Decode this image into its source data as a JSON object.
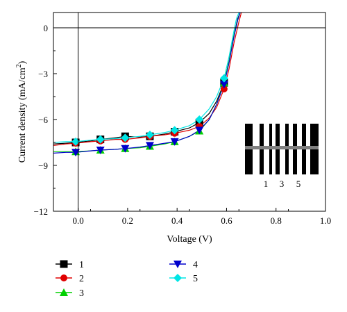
{
  "chart_data": {
    "type": "line",
    "title": "",
    "xlabel": "Voltage (V)",
    "ylabel": "Current density (mA/cm",
    "ylabel_sup": "2",
    "ylabel_close": ")",
    "xlim": [
      -0.1,
      1.0
    ],
    "ylim": [
      -12,
      1
    ],
    "xticks": [
      0.0,
      0.2,
      0.4,
      0.6,
      0.8,
      1.0
    ],
    "xtick_labels": [
      "0.0",
      "0.2",
      "0.4",
      "0.6",
      "0.8",
      "1.0"
    ],
    "yticks": [
      0,
      -3,
      -6,
      -9,
      -12
    ],
    "ytick_labels": [
      "0",
      "−3",
      "−6",
      "−9",
      "−12"
    ],
    "grid": false,
    "legend_position": "bottom",
    "marker_x": [
      -0.01,
      0.09,
      0.19,
      0.29,
      0.39,
      0.49,
      0.59
    ],
    "series": [
      {
        "name": "1",
        "color": "#000000",
        "marker": "square",
        "x": [
          -0.1,
          -0.05,
          -0.01,
          0.05,
          0.09,
          0.15,
          0.19,
          0.25,
          0.29,
          0.35,
          0.39,
          0.45,
          0.49,
          0.53,
          0.56,
          0.59,
          0.61,
          0.63,
          0.645,
          0.655
        ],
        "y": [
          -7.6,
          -7.55,
          -7.5,
          -7.4,
          -7.3,
          -7.2,
          -7.1,
          -7.15,
          -7.1,
          -6.95,
          -6.8,
          -6.55,
          -6.2,
          -5.6,
          -4.8,
          -3.6,
          -2.2,
          -0.5,
          0.6,
          1.0
        ],
        "marker_y": [
          -7.5,
          -7.3,
          -7.1,
          -7.1,
          -6.8,
          -6.2,
          -3.6
        ]
      },
      {
        "name": "2",
        "color": "#e00000",
        "marker": "circle",
        "x": [
          -0.1,
          -0.05,
          -0.01,
          0.05,
          0.09,
          0.15,
          0.19,
          0.25,
          0.29,
          0.35,
          0.39,
          0.45,
          0.49,
          0.53,
          0.56,
          0.59,
          0.61,
          0.63,
          0.65,
          0.66
        ],
        "y": [
          -7.7,
          -7.6,
          -7.55,
          -7.45,
          -7.4,
          -7.3,
          -7.3,
          -7.2,
          -7.1,
          -7.0,
          -6.9,
          -6.7,
          -6.45,
          -5.9,
          -5.2,
          -4.0,
          -2.7,
          -1.0,
          0.4,
          1.0
        ],
        "marker_y": [
          -7.55,
          -7.4,
          -7.3,
          -7.1,
          -6.9,
          -6.45,
          -4.0
        ]
      },
      {
        "name": "3",
        "color": "#00d000",
        "marker": "triangle-up",
        "x": [
          -0.1,
          -0.05,
          -0.01,
          0.05,
          0.09,
          0.15,
          0.19,
          0.25,
          0.29,
          0.35,
          0.39,
          0.45,
          0.49,
          0.53,
          0.56,
          0.59,
          0.61,
          0.63,
          0.645,
          0.655
        ],
        "y": [
          -8.1,
          -8.1,
          -8.1,
          -8.05,
          -8.0,
          -7.95,
          -7.9,
          -7.85,
          -7.75,
          -7.6,
          -7.45,
          -7.1,
          -6.75,
          -6.0,
          -5.0,
          -3.6,
          -2.2,
          -0.5,
          0.5,
          1.0
        ],
        "marker_y": [
          -8.1,
          -8.0,
          -7.9,
          -7.75,
          -7.45,
          -6.75,
          -3.6
        ]
      },
      {
        "name": "4",
        "color": "#0000cc",
        "marker": "triangle-down",
        "x": [
          -0.1,
          -0.05,
          -0.01,
          0.05,
          0.09,
          0.15,
          0.19,
          0.25,
          0.29,
          0.35,
          0.39,
          0.45,
          0.49,
          0.53,
          0.56,
          0.59,
          0.61,
          0.63,
          0.645,
          0.655
        ],
        "y": [
          -8.2,
          -8.15,
          -8.15,
          -8.05,
          -8.0,
          -7.95,
          -7.9,
          -7.8,
          -7.7,
          -7.55,
          -7.45,
          -7.1,
          -6.7,
          -6.0,
          -5.0,
          -3.7,
          -2.3,
          -0.6,
          0.5,
          1.0
        ],
        "marker_y": [
          -8.15,
          -8.0,
          -7.9,
          -7.7,
          -7.45,
          -6.7,
          -3.7
        ]
      },
      {
        "name": "5",
        "color": "#00e5e5",
        "marker": "diamond",
        "x": [
          -0.1,
          -0.05,
          -0.01,
          0.05,
          0.09,
          0.15,
          0.19,
          0.25,
          0.29,
          0.35,
          0.39,
          0.45,
          0.49,
          0.53,
          0.56,
          0.59,
          0.61,
          0.63,
          0.64,
          0.65
        ],
        "y": [
          -7.5,
          -7.45,
          -7.45,
          -7.35,
          -7.3,
          -7.25,
          -7.2,
          -7.1,
          -7.0,
          -6.85,
          -6.7,
          -6.4,
          -6.0,
          -5.3,
          -4.5,
          -3.3,
          -1.9,
          -0.2,
          0.6,
          1.0
        ],
        "marker_y": [
          -7.45,
          -7.3,
          -7.2,
          -7.0,
          -6.7,
          -6.0,
          -3.3
        ]
      }
    ],
    "inset": {
      "description_labels": [
        "1",
        "3",
        "5"
      ],
      "background": "#000000",
      "stripe_color": "#ffffff",
      "bar_color": "#808080"
    }
  }
}
